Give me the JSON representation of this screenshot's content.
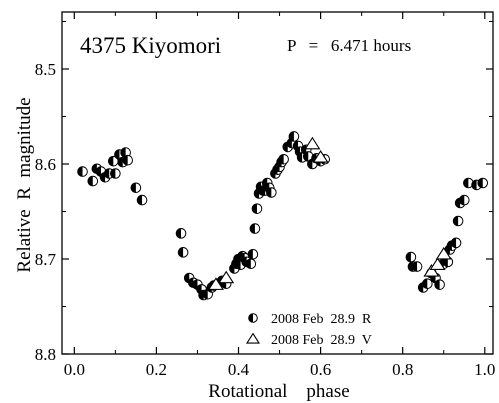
{
  "chart_data": {
    "type": "scatter",
    "title": "4375 Kiyomori",
    "period_label": "P   =   6.471 hours",
    "xlabel": "Rotational    phase",
    "ylabel": "Relative  R  magnitude",
    "xlim": [
      -0.03,
      1.02
    ],
    "ylim": [
      8.8,
      8.44
    ],
    "y_inverted": true,
    "x_ticks": [
      "0.0",
      "0.2",
      "0.4",
      "0.6",
      "0.8",
      "1.0"
    ],
    "y_ticks": [
      "8.5",
      "8.6",
      "8.7",
      "8.8"
    ],
    "x_tick_values": [
      0.0,
      0.2,
      0.4,
      0.6,
      0.8,
      1.0
    ],
    "y_tick_values": [
      8.5,
      8.6,
      8.7,
      8.8
    ],
    "legend_position": "bottom-center",
    "series": [
      {
        "name": "2008 Feb  28.9  R",
        "marker": "half-filled-circle",
        "color": "#000000",
        "x": [
          0.02,
          0.045,
          0.055,
          0.065,
          0.075,
          0.085,
          0.095,
          0.1,
          0.11,
          0.118,
          0.125,
          0.13,
          0.15,
          0.165,
          0.26,
          0.265,
          0.28,
          0.29,
          0.3,
          0.31,
          0.315,
          0.325,
          0.335,
          0.34,
          0.35,
          0.36,
          0.37,
          0.39,
          0.395,
          0.4,
          0.405,
          0.41,
          0.415,
          0.42,
          0.43,
          0.435,
          0.44,
          0.445,
          0.45,
          0.455,
          0.46,
          0.465,
          0.47,
          0.475,
          0.48,
          0.49,
          0.495,
          0.5,
          0.505,
          0.51,
          0.52,
          0.53,
          0.535,
          0.545,
          0.55,
          0.555,
          0.565,
          0.57,
          0.58,
          0.59,
          0.6,
          0.61,
          0.82,
          0.825,
          0.835,
          0.85,
          0.86,
          0.87,
          0.88,
          0.89,
          0.9,
          0.91,
          0.915,
          0.92,
          0.93,
          0.935,
          0.94,
          0.95,
          0.96,
          0.98,
          0.995
        ],
        "y": [
          8.608,
          8.618,
          8.605,
          8.608,
          8.614,
          8.61,
          8.597,
          8.61,
          8.59,
          8.598,
          8.588,
          8.596,
          8.625,
          8.638,
          8.673,
          8.693,
          8.72,
          8.725,
          8.727,
          8.732,
          8.738,
          8.737,
          8.73,
          8.728,
          8.726,
          8.723,
          8.726,
          8.71,
          8.705,
          8.7,
          8.706,
          8.697,
          8.699,
          8.703,
          8.705,
          8.695,
          8.668,
          8.647,
          8.631,
          8.624,
          8.628,
          8.628,
          8.62,
          8.625,
          8.63,
          8.61,
          8.606,
          8.603,
          8.598,
          8.595,
          8.582,
          8.578,
          8.571,
          8.581,
          8.587,
          8.593,
          8.585,
          8.592,
          8.6,
          8.594,
          8.597,
          8.595,
          8.698,
          8.708,
          8.708,
          8.73,
          8.726,
          8.715,
          8.72,
          8.727,
          8.705,
          8.703,
          8.69,
          8.686,
          8.683,
          8.66,
          8.641,
          8.638,
          8.62,
          8.622,
          8.62
        ]
      },
      {
        "name": "2008 Feb  28.9  V",
        "marker": "open-triangle",
        "color": "#000000",
        "x": [
          0.345,
          0.37,
          0.58,
          0.6,
          0.87,
          0.885,
          0.9
        ],
        "y": [
          8.727,
          8.72,
          8.579,
          8.593,
          8.713,
          8.706,
          8.695
        ]
      }
    ]
  }
}
